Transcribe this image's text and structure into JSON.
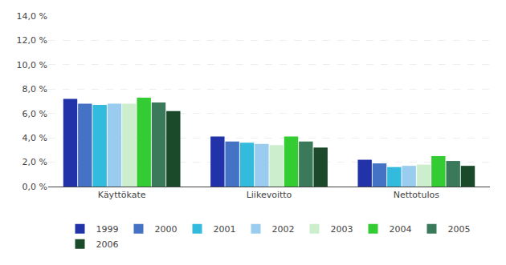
{
  "chart_data": {
    "type": "bar",
    "categories": [
      "Käyttökate",
      "Liikevoitto",
      "Nettotulos"
    ],
    "series": [
      {
        "name": "1999",
        "color": "#2233aa",
        "values": [
          7.2,
          4.1,
          2.2
        ]
      },
      {
        "name": "2000",
        "color": "#4472c4",
        "values": [
          6.8,
          3.7,
          1.9
        ]
      },
      {
        "name": "2001",
        "color": "#33bbdd",
        "values": [
          6.7,
          3.6,
          1.6
        ]
      },
      {
        "name": "2002",
        "color": "#99ccee",
        "values": [
          6.8,
          3.5,
          1.7
        ]
      },
      {
        "name": "2003",
        "color": "#cceecc",
        "values": [
          6.8,
          3.4,
          1.8
        ]
      },
      {
        "name": "2004",
        "color": "#33cc33",
        "values": [
          7.3,
          4.1,
          2.5
        ]
      },
      {
        "name": "2005",
        "color": "#3a7a5a",
        "values": [
          6.9,
          3.7,
          2.1
        ]
      },
      {
        "name": "2006",
        "color": "#1a4a2a",
        "values": [
          6.2,
          3.2,
          1.7
        ]
      }
    ],
    "ylim": [
      0,
      14.0
    ],
    "yticks": [
      {
        "value": 0.0,
        "label": "0,0 %"
      },
      {
        "value": 2.0,
        "label": "2,0 %"
      },
      {
        "value": 4.0,
        "label": "4,0 %"
      },
      {
        "value": 6.0,
        "label": "6,0 %"
      },
      {
        "value": 8.0,
        "label": "8,0 %"
      },
      {
        "value": 10.0,
        "label": "10,0 %"
      },
      {
        "value": 12.0,
        "label": "12,0 %"
      },
      {
        "value": 14.0,
        "label": "14,0 %"
      }
    ],
    "grid": true,
    "legend": "bottom"
  }
}
